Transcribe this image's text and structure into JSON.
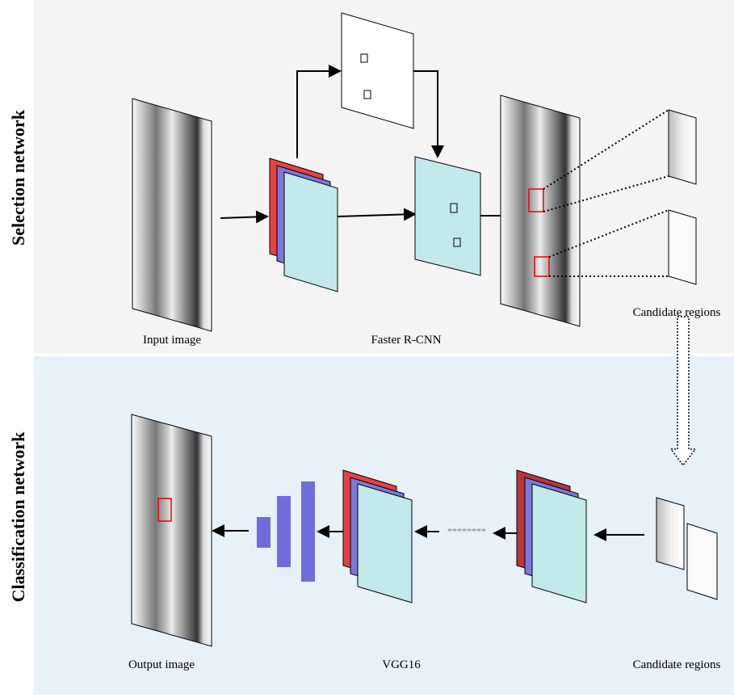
{
  "sections": [
    {
      "label": "Selection network"
    },
    {
      "label": "Classification network"
    }
  ],
  "nodes": [
    {
      "label": "Input image"
    },
    {
      "label": "Faster R-CNN"
    },
    {
      "label": "Candidate regions"
    },
    {
      "label": "Output image"
    },
    {
      "label": "VGG16"
    },
    {
      "label": "Candidate regions"
    }
  ]
}
